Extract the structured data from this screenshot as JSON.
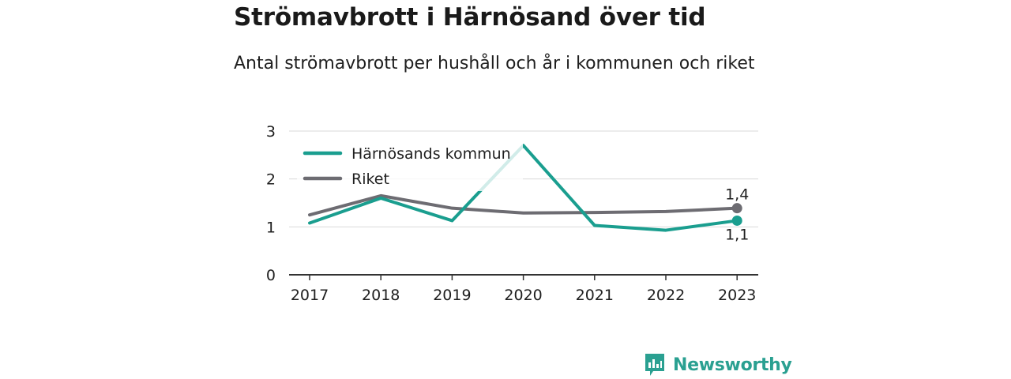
{
  "title": "Strömavbrott i Härnösand över tid",
  "subtitle": "Antal strömavbrott per hushåll och år i kommunen och riket",
  "brand": "Newsworthy",
  "colors": {
    "harnosand": "#1a9e8f",
    "riket": "#6d6c72",
    "grid": "#d9d9d9",
    "axis": "#333333"
  },
  "chart_data": {
    "type": "line",
    "x": [
      "2017",
      "2018",
      "2019",
      "2020",
      "2021",
      "2022",
      "2023"
    ],
    "yticks": [
      "0",
      "1",
      "2",
      "3"
    ],
    "ylim": [
      0,
      3
    ],
    "grid": true,
    "legend_position": "top-left",
    "series": [
      {
        "name": "Härnösands kommun",
        "values": [
          1.08,
          1.6,
          1.13,
          2.7,
          1.03,
          0.93,
          1.13
        ],
        "end_label": "1,1"
      },
      {
        "name": "Riket",
        "values": [
          1.25,
          1.65,
          1.39,
          1.29,
          1.3,
          1.32,
          1.39
        ],
        "end_label": "1,4"
      }
    ]
  }
}
